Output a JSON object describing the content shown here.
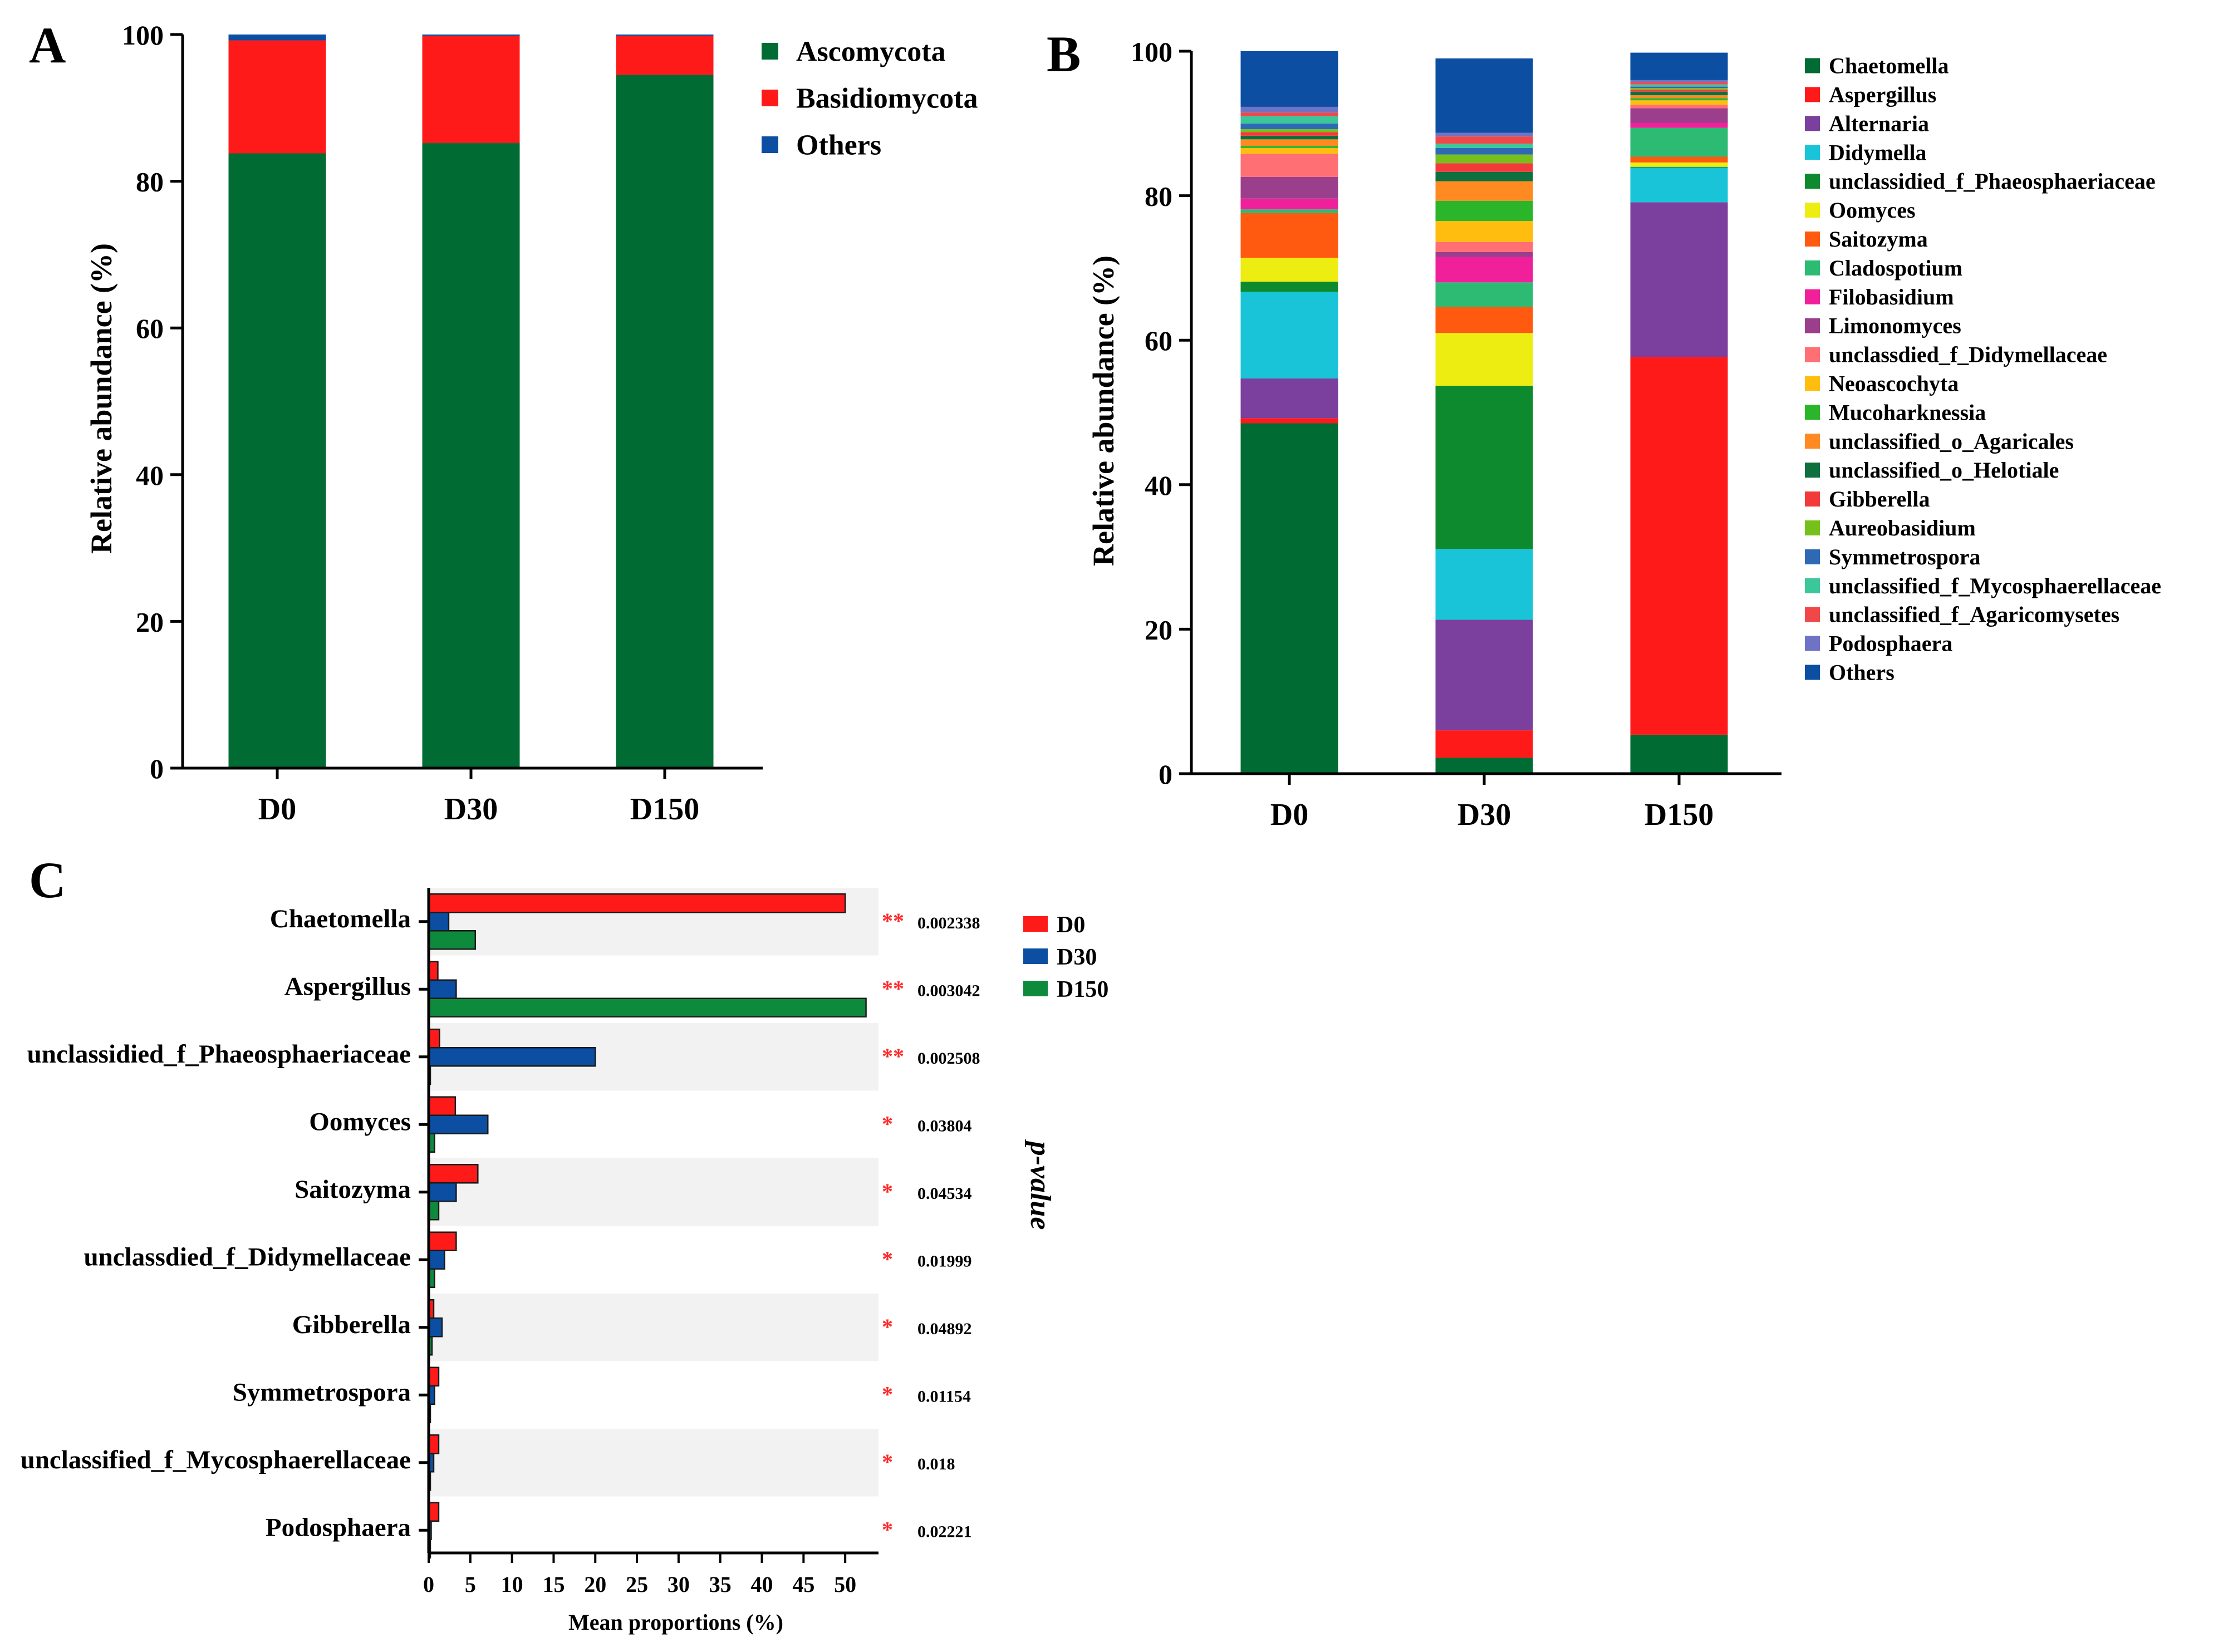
{
  "colors": {
    "ascomycota": "#006B33",
    "basidiomycota": "#FF1A1A",
    "others": "#0B4EA2",
    "d0": "#FF1A1A",
    "d30": "#0B4EA2",
    "d150": "#0E8A3C",
    "star": "#FF2A2A",
    "stripe": "#F2F2F2"
  },
  "chart_data": [
    {
      "panel": "A",
      "type": "bar",
      "stacked": true,
      "categories": [
        "D0",
        "D30",
        "D150"
      ],
      "ylabel": "Relative abundance (%)",
      "xlabel": "",
      "ylim": [
        0,
        100
      ],
      "yticks": [
        "0",
        "20",
        "40",
        "60",
        "80",
        "100"
      ],
      "legend_position": "top-right",
      "series": [
        {
          "name": "Ascomycota",
          "color": "#006B33",
          "values": [
            83.8,
            85.2,
            94.5
          ]
        },
        {
          "name": "Basidiomycota",
          "color": "#FF1A1A",
          "values": [
            15.4,
            14.6,
            5.3
          ]
        },
        {
          "name": "Others",
          "color": "#0B4EA2",
          "values": [
            0.8,
            0.2,
            0.2
          ]
        }
      ]
    },
    {
      "panel": "B",
      "type": "bar",
      "stacked": true,
      "categories": [
        "D0",
        "D30",
        "D150"
      ],
      "ylabel": "Relative abundance (%)",
      "xlabel": "",
      "ylim": [
        0,
        100
      ],
      "yticks": [
        "0",
        "20",
        "40",
        "60",
        "80",
        "100"
      ],
      "legend_position": "right",
      "series": [
        {
          "name": "Chaetomella",
          "color": "#006B33",
          "values": [
            48.5,
            2.2,
            5.4
          ]
        },
        {
          "name": "Aspergillus",
          "color": "#FF1A1A",
          "values": [
            0.7,
            3.8,
            52.3
          ]
        },
        {
          "name": "Alternaria",
          "color": "#7B3F9E",
          "values": [
            5.5,
            15.3,
            21.4
          ]
        },
        {
          "name": "Didymella",
          "color": "#19C4D8",
          "values": [
            12.0,
            9.8,
            4.8
          ]
        },
        {
          "name": "unclassidied_f_Phaeosphaeriaceae",
          "color": "#0E8A2E",
          "values": [
            1.4,
            22.6,
            0.1
          ]
        },
        {
          "name": "Oomyces",
          "color": "#EDED12",
          "values": [
            3.3,
            7.3,
            0.6
          ]
        },
        {
          "name": "Saitozyma",
          "color": "#FF5A0F",
          "values": [
            6.2,
            3.6,
            0.8
          ]
        },
        {
          "name": "Cladospotium",
          "color": "#2DBB74",
          "values": [
            0.5,
            3.4,
            4.0
          ]
        },
        {
          "name": "Filobasidium",
          "color": "#F0209B",
          "values": [
            1.5,
            3.5,
            0.7
          ]
        },
        {
          "name": "Limonomyces",
          "color": "#9B3E8C",
          "values": [
            3.0,
            0.7,
            2.0
          ]
        },
        {
          "name": "unclassdied_f_Didymellaceae",
          "color": "#FF6F73",
          "values": [
            3.2,
            1.4,
            0.5
          ]
        },
        {
          "name": "Neoascochyta",
          "color": "#FFBE0F",
          "values": [
            0.8,
            2.9,
            0.6
          ]
        },
        {
          "name": "Mucoharknessia",
          "color": "#2BB52B",
          "values": [
            0.3,
            2.8,
            0.3
          ]
        },
        {
          "name": "unclassified_o_Agaricales",
          "color": "#FF8A21",
          "values": [
            0.9,
            2.7,
            0.4
          ]
        },
        {
          "name": "unclassified_o_Helotiale",
          "color": "#0E6F3F",
          "values": [
            0.5,
            1.3,
            0.5
          ]
        },
        {
          "name": "Gibberella",
          "color": "#F23A3A",
          "values": [
            0.5,
            1.2,
            0.3
          ]
        },
        {
          "name": "Aureobasidium",
          "color": "#76C01C",
          "values": [
            0.4,
            1.2,
            0.2
          ]
        },
        {
          "name": "Symmetrospora",
          "color": "#2E6AB3",
          "values": [
            0.8,
            0.9,
            0.2
          ]
        },
        {
          "name": "unclassified_f_Mycosphaerellaceae",
          "color": "#3CC79B",
          "values": [
            1.0,
            0.6,
            0.3
          ]
        },
        {
          "name": "unclassified_f_Agaricomysetes",
          "color": "#F04848",
          "values": [
            0.5,
            1.0,
            0.3
          ]
        },
        {
          "name": "Podosphaera",
          "color": "#6F73C6",
          "values": [
            0.8,
            0.5,
            0.3
          ]
        },
        {
          "name": "Others",
          "color": "#0B4EA2",
          "values": [
            7.7,
            10.3,
            3.8
          ]
        }
      ]
    },
    {
      "panel": "C",
      "type": "bar",
      "orientation": "horizontal",
      "xlabel": "Mean proportions (%)",
      "right_label": "p-value",
      "xlim": [
        0,
        54
      ],
      "xticks": [
        "0",
        "5",
        "10",
        "15",
        "20",
        "25",
        "30",
        "35",
        "40",
        "45",
        "50"
      ],
      "legend_position": "top-right",
      "categories": [
        "Chaetomella",
        "Aspergillus",
        "unclassidied_f_Phaeosphaeriaceae",
        "Oomyces",
        "Saitozyma",
        "unclassdied_f_Didymellaceae",
        "Gibberella",
        "Symmetrospora",
        "unclassified_f_Mycosphaerellaceae",
        "Podosphaera"
      ],
      "series": [
        {
          "name": "D0",
          "color": "#FF1A1A",
          "values": [
            50.0,
            1.1,
            1.3,
            3.2,
            5.9,
            3.3,
            0.6,
            1.2,
            1.2,
            1.2
          ]
        },
        {
          "name": "D30",
          "color": "#0B4EA2",
          "values": [
            2.4,
            3.3,
            20.0,
            7.1,
            3.3,
            1.9,
            1.6,
            0.7,
            0.6,
            0.3
          ]
        },
        {
          "name": "D150",
          "color": "#0E8A3C",
          "values": [
            5.6,
            52.5,
            0.2,
            0.7,
            1.2,
            0.7,
            0.4,
            0.2,
            0.2,
            0.2
          ]
        }
      ],
      "significance": [
        "**",
        "**",
        "**",
        "*",
        "*",
        "*",
        "*",
        "*",
        "*",
        "*"
      ],
      "p_values": [
        "0.002338",
        "0.003042",
        "0.002508",
        "0.03804",
        "0.04534",
        "0.01999",
        "0.04892",
        "0.01154",
        "0.018",
        "0.02221"
      ]
    }
  ]
}
